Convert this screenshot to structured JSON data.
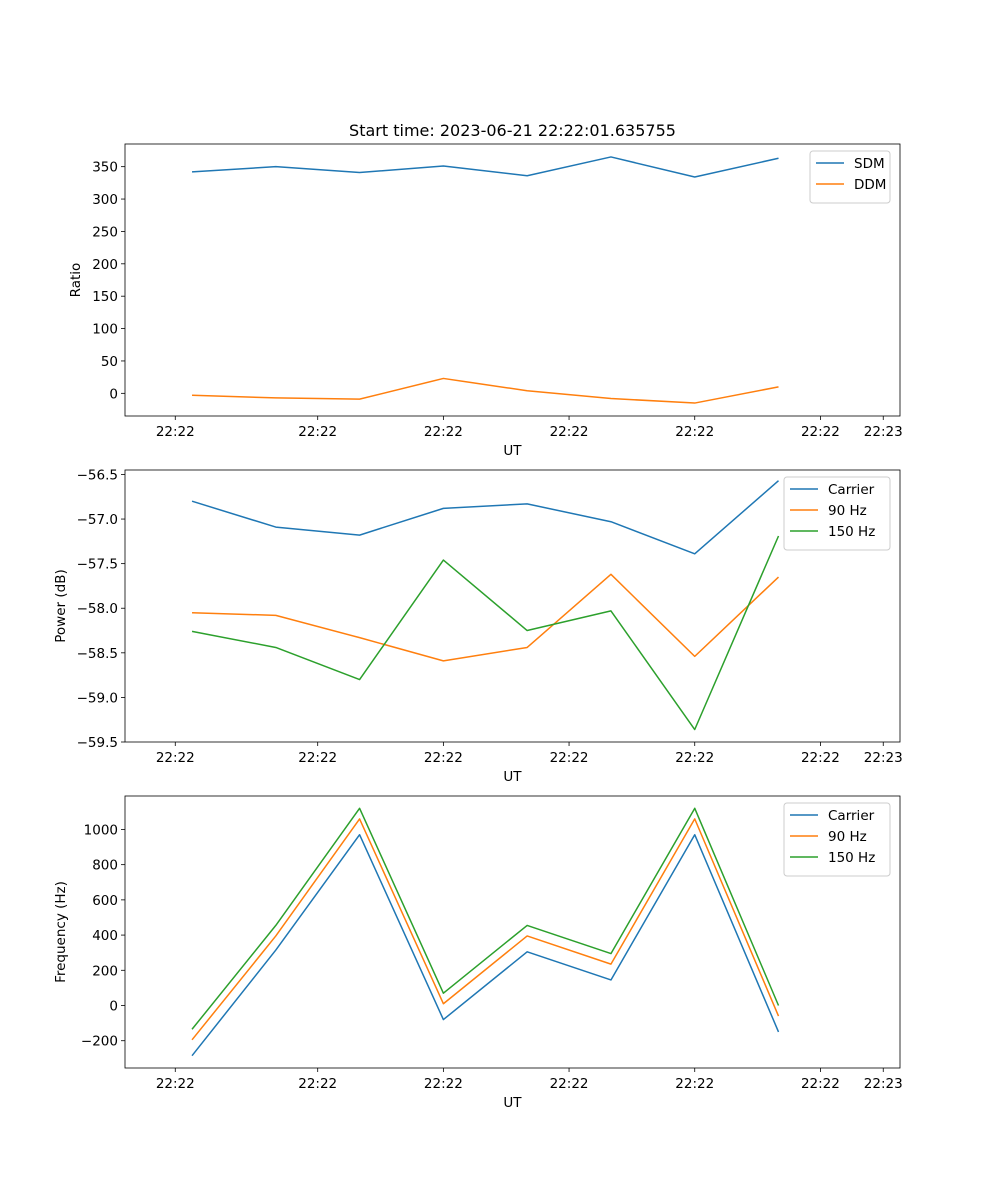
{
  "figure_title": "Start time: 2023-06-21 22:22:01.635755",
  "chart_data": [
    {
      "type": "line",
      "title": "Start time: 2023-06-21 22:22:01.635755",
      "xlabel": "UT",
      "ylabel": "Ratio",
      "x": [
        1,
        2,
        3,
        4,
        5,
        6,
        7,
        8
      ],
      "x_ticks": [
        "22:22",
        "22:22",
        "22:22",
        "22:22",
        "22:22",
        "22:22",
        "22:23"
      ],
      "xlim": [
        0.2,
        9.45
      ],
      "ylim": [
        -35,
        385
      ],
      "y_ticks": [
        0,
        50,
        100,
        150,
        200,
        250,
        300,
        350
      ],
      "legend_position": "top-right",
      "grid": false,
      "series": [
        {
          "name": "SDM",
          "color": "#1f77b4",
          "values": [
            342,
            350,
            341,
            351,
            336,
            365,
            334,
            363
          ]
        },
        {
          "name": "DDM",
          "color": "#ff7f0e",
          "values": [
            -3,
            -7,
            -9,
            23,
            4,
            -8,
            -15,
            10
          ]
        }
      ]
    },
    {
      "type": "line",
      "xlabel": "UT",
      "ylabel": "Power (dB)",
      "x": [
        1,
        2,
        3,
        4,
        5,
        6,
        7,
        8
      ],
      "x_ticks": [
        "22:22",
        "22:22",
        "22:22",
        "22:22",
        "22:22",
        "22:22",
        "22:23"
      ],
      "xlim": [
        0.2,
        9.45
      ],
      "ylim": [
        -59.5,
        -56.45
      ],
      "y_ticks": [
        -59.5,
        -59.0,
        -58.5,
        -58.0,
        -57.5,
        -57.0,
        -56.5
      ],
      "legend_position": "top-right",
      "grid": false,
      "series": [
        {
          "name": "Carrier",
          "color": "#1f77b4",
          "values": [
            -56.8,
            -57.09,
            -57.18,
            -56.88,
            -56.83,
            -57.03,
            -57.39,
            -56.57
          ]
        },
        {
          "name": "90 Hz",
          "color": "#ff7f0e",
          "values": [
            -58.05,
            -58.08,
            -58.33,
            -58.59,
            -58.44,
            -57.62,
            -58.54,
            -57.65
          ]
        },
        {
          "name": "150 Hz",
          "color": "#2ca02c",
          "values": [
            -58.26,
            -58.44,
            -58.8,
            -57.46,
            -58.25,
            -58.03,
            -59.36,
            -57.19
          ]
        }
      ]
    },
    {
      "type": "line",
      "xlabel": "UT",
      "ylabel": "Frequency (Hz)",
      "x": [
        1,
        2,
        3,
        4,
        5,
        6,
        7,
        8
      ],
      "x_ticks": [
        "22:22",
        "22:22",
        "22:22",
        "22:22",
        "22:22",
        "22:22",
        "22:23"
      ],
      "xlim": [
        0.2,
        9.45
      ],
      "ylim": [
        -355,
        1190
      ],
      "y_ticks": [
        -200,
        0,
        200,
        400,
        600,
        800,
        1000
      ],
      "legend_position": "top-right",
      "grid": false,
      "series": [
        {
          "name": "Carrier",
          "color": "#1f77b4",
          "values": [
            -285,
            315,
            970,
            -80,
            305,
            145,
            970,
            -150
          ]
        },
        {
          "name": "90 Hz",
          "color": "#ff7f0e",
          "values": [
            -195,
            395,
            1060,
            10,
            395,
            235,
            1060,
            -60
          ]
        },
        {
          "name": "150 Hz",
          "color": "#2ca02c",
          "values": [
            -135,
            455,
            1120,
            70,
            455,
            295,
            1120,
            0
          ]
        }
      ]
    }
  ]
}
